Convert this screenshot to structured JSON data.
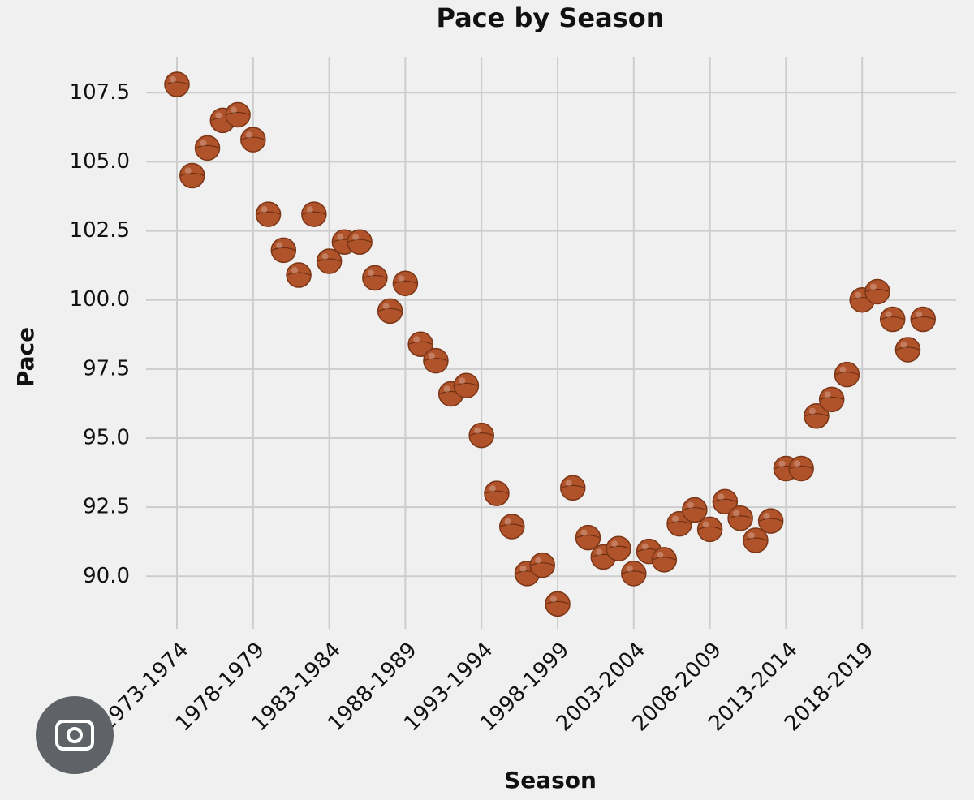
{
  "chart_data": {
    "type": "scatter",
    "title": "Pace by Season",
    "x_label": "Season",
    "y_label": "Pace",
    "categories": [
      "1973-1974",
      null,
      null,
      null,
      null,
      "1978-1979",
      null,
      null,
      null,
      null,
      "1983-1984",
      null,
      null,
      null,
      null,
      "1988-1989",
      null,
      null,
      null,
      null,
      "1993-1994",
      null,
      null,
      null,
      null,
      "1998-1999",
      null,
      null,
      null,
      null,
      "2003-2004",
      null,
      null,
      null,
      null,
      "2008-2009",
      null,
      null,
      null,
      null,
      "2013-2014",
      null,
      null,
      null,
      null,
      "2018-2019",
      null,
      null,
      null,
      null
    ],
    "values": [
      107.8,
      104.5,
      105.5,
      106.5,
      106.7,
      105.8,
      103.1,
      101.8,
      100.9,
      103.1,
      101.4,
      102.1,
      102.1,
      100.8,
      99.6,
      100.6,
      98.4,
      97.8,
      96.6,
      96.9,
      95.1,
      93.0,
      91.8,
      90.1,
      90.4,
      89.0,
      93.2,
      91.4,
      90.7,
      91.0,
      90.1,
      90.9,
      90.6,
      91.9,
      92.4,
      91.7,
      92.7,
      92.1,
      91.3,
      92.0,
      93.9,
      93.9,
      95.8,
      96.4,
      97.3,
      100.0,
      100.3,
      99.3,
      98.2,
      99.3
    ],
    "color": "#b0532a",
    "ylim": [
      88.1,
      108.8
    ],
    "yticks": [
      {
        "value": 90,
        "label": "90.0"
      },
      92.5,
      {
        "value": 95,
        "label": "95.0"
      },
      97.5,
      {
        "value": 100,
        "label": "100.0"
      },
      102.5,
      {
        "value": 105,
        "label": "105.0"
      },
      107.5
    ],
    "grid": true
  }
}
